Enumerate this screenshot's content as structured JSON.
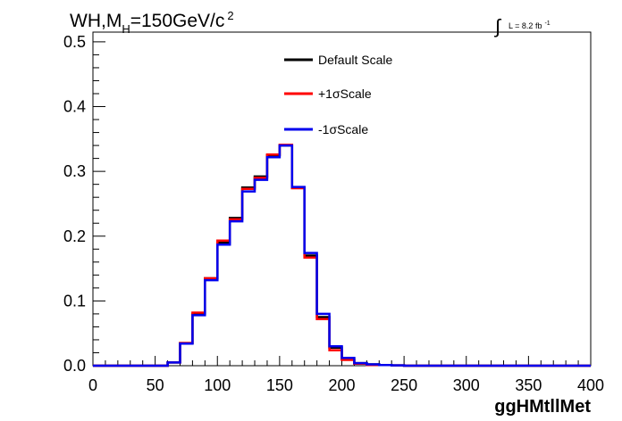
{
  "chart_data": {
    "type": "line",
    "step": true,
    "title": {
      "prefix": "WH,M",
      "sub": "H",
      "suffix": "=150GeV/c",
      "sup": "2"
    },
    "luminosity": {
      "integral": "∫",
      "text": "L = 8.2 fb",
      "sup": "-1"
    },
    "xlabel": "ggHMtllMet",
    "ylabel": "",
    "xlim": [
      0,
      400
    ],
    "ylim": [
      0,
      0.515
    ],
    "x_ticks": [
      0,
      50,
      100,
      150,
      200,
      250,
      300,
      350,
      400
    ],
    "x_tick_labels": [
      "0",
      "50",
      "100",
      "150",
      "200",
      "250",
      "300",
      "350",
      "400"
    ],
    "y_ticks": [
      0,
      0.1,
      0.2,
      0.3,
      0.4,
      0.5
    ],
    "y_tick_labels": [
      "0.0",
      "0.1",
      "0.2",
      "0.3",
      "0.4",
      "0.5"
    ],
    "legend_position": "top-center",
    "grid": false,
    "bin_edges": [
      0,
      10,
      20,
      30,
      40,
      50,
      60,
      70,
      80,
      90,
      100,
      110,
      120,
      130,
      140,
      150,
      160,
      170,
      180,
      190,
      200,
      210,
      220,
      230,
      240,
      250,
      260,
      270,
      280,
      290,
      300,
      310,
      320,
      330,
      340,
      350,
      360,
      370,
      380,
      390,
      400
    ],
    "series": [
      {
        "name": "Default Scale",
        "color": "#000000",
        "values": [
          0,
          0,
          0,
          0,
          0,
          0,
          0.005,
          0.035,
          0.08,
          0.135,
          0.19,
          0.228,
          0.275,
          0.292,
          0.325,
          0.34,
          0.275,
          0.17,
          0.075,
          0.028,
          0.01,
          0.004,
          0.002,
          0.001,
          0.0005,
          0,
          0,
          0,
          0,
          0,
          0,
          0,
          0,
          0,
          0,
          0,
          0,
          0,
          0,
          0
        ]
      },
      {
        "name": "+1σScale",
        "color": "#ff0000",
        "values": [
          0,
          0,
          0,
          0,
          0,
          0,
          0.005,
          0.035,
          0.082,
          0.135,
          0.193,
          0.226,
          0.273,
          0.29,
          0.326,
          0.341,
          0.274,
          0.167,
          0.072,
          0.024,
          0.009,
          0.003,
          0.001,
          0.001,
          0.0005,
          0,
          0,
          0,
          0,
          0,
          0,
          0,
          0,
          0,
          0,
          0,
          0,
          0,
          0,
          0
        ]
      },
      {
        "name": "-1σScale",
        "color": "#0000ee",
        "values": [
          0,
          0,
          0,
          0,
          0,
          0,
          0.005,
          0.034,
          0.078,
          0.132,
          0.187,
          0.223,
          0.269,
          0.287,
          0.322,
          0.34,
          0.276,
          0.174,
          0.08,
          0.03,
          0.012,
          0.004,
          0.002,
          0.001,
          0.0005,
          0,
          0,
          0,
          0,
          0,
          0,
          0,
          0,
          0,
          0,
          0,
          0,
          0,
          0,
          0
        ]
      }
    ]
  }
}
